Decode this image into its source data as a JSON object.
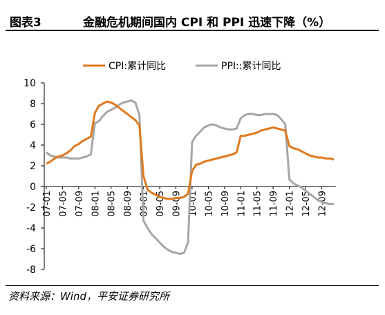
{
  "header": {
    "figure_no": "图表3",
    "title": "金融危机期间国内 CPI 和 PPI 迅速下降（%）"
  },
  "source": "资料来源：Wind，平安证券研究所",
  "chart_data": {
    "type": "line",
    "title": "",
    "xlabel": "",
    "ylabel": "",
    "ylim": [
      -8,
      10
    ],
    "yticks": [
      -8,
      -6,
      -4,
      -2,
      0,
      2,
      4,
      6,
      8,
      10
    ],
    "grid": false,
    "legend_position": "top",
    "x_start": "2007-01",
    "x_tick_labels": [
      "07-01",
      "07-05",
      "07-09",
      "08-01",
      "08-05",
      "08-09",
      "09-01",
      "09-05",
      "09-09",
      "10-01",
      "10-05",
      "10-09",
      "11-01",
      "11-05",
      "11-09",
      "12-01",
      "12-05",
      "12-09"
    ],
    "series": [
      {
        "name": "CPI:累计同比",
        "color": "#E07A1F",
        "values": [
          2.2,
          2.4,
          2.7,
          2.9,
          3.0,
          3.2,
          3.5,
          3.9,
          4.1,
          4.4,
          4.6,
          4.8,
          7.1,
          7.8,
          8.0,
          8.2,
          8.1,
          7.9,
          7.6,
          7.3,
          7.0,
          6.7,
          6.4,
          5.9,
          1.0,
          -0.3,
          -0.6,
          -0.8,
          -1.0,
          -1.1,
          -1.2,
          -1.2,
          -1.1,
          -1.1,
          -1.0,
          -0.7,
          1.5,
          2.1,
          2.2,
          2.4,
          2.5,
          2.6,
          2.7,
          2.8,
          2.9,
          3.0,
          3.1,
          3.3,
          4.9,
          4.9,
          5.0,
          5.1,
          5.2,
          5.4,
          5.5,
          5.6,
          5.7,
          5.6,
          5.5,
          5.4,
          3.9,
          3.7,
          3.6,
          3.4,
          3.2,
          3.0,
          2.9,
          2.8,
          2.8,
          2.7,
          2.7,
          2.6
        ]
      },
      {
        "name": "PPI::累计同比",
        "color": "#A6A6A6",
        "values": [
          3.3,
          3.0,
          2.9,
          2.8,
          2.8,
          2.8,
          2.7,
          2.7,
          2.7,
          2.8,
          2.9,
          3.1,
          6.1,
          6.3,
          6.8,
          7.2,
          7.4,
          7.6,
          7.9,
          8.1,
          8.2,
          8.3,
          8.1,
          6.9,
          -3.3,
          -4.0,
          -4.6,
          -5.0,
          -5.4,
          -5.8,
          -6.1,
          -6.3,
          -6.4,
          -6.5,
          -6.4,
          -5.4,
          4.3,
          4.9,
          5.3,
          5.7,
          5.9,
          6.0,
          5.9,
          5.7,
          5.6,
          5.5,
          5.5,
          5.6,
          6.6,
          6.9,
          7.0,
          7.0,
          6.9,
          6.9,
          7.0,
          7.0,
          7.0,
          6.9,
          6.5,
          6.0,
          0.7,
          0.3,
          0.1,
          -0.1,
          -0.4,
          -0.7,
          -1.0,
          -1.3,
          -1.5,
          -1.6,
          -1.7,
          -1.7
        ]
      }
    ]
  }
}
